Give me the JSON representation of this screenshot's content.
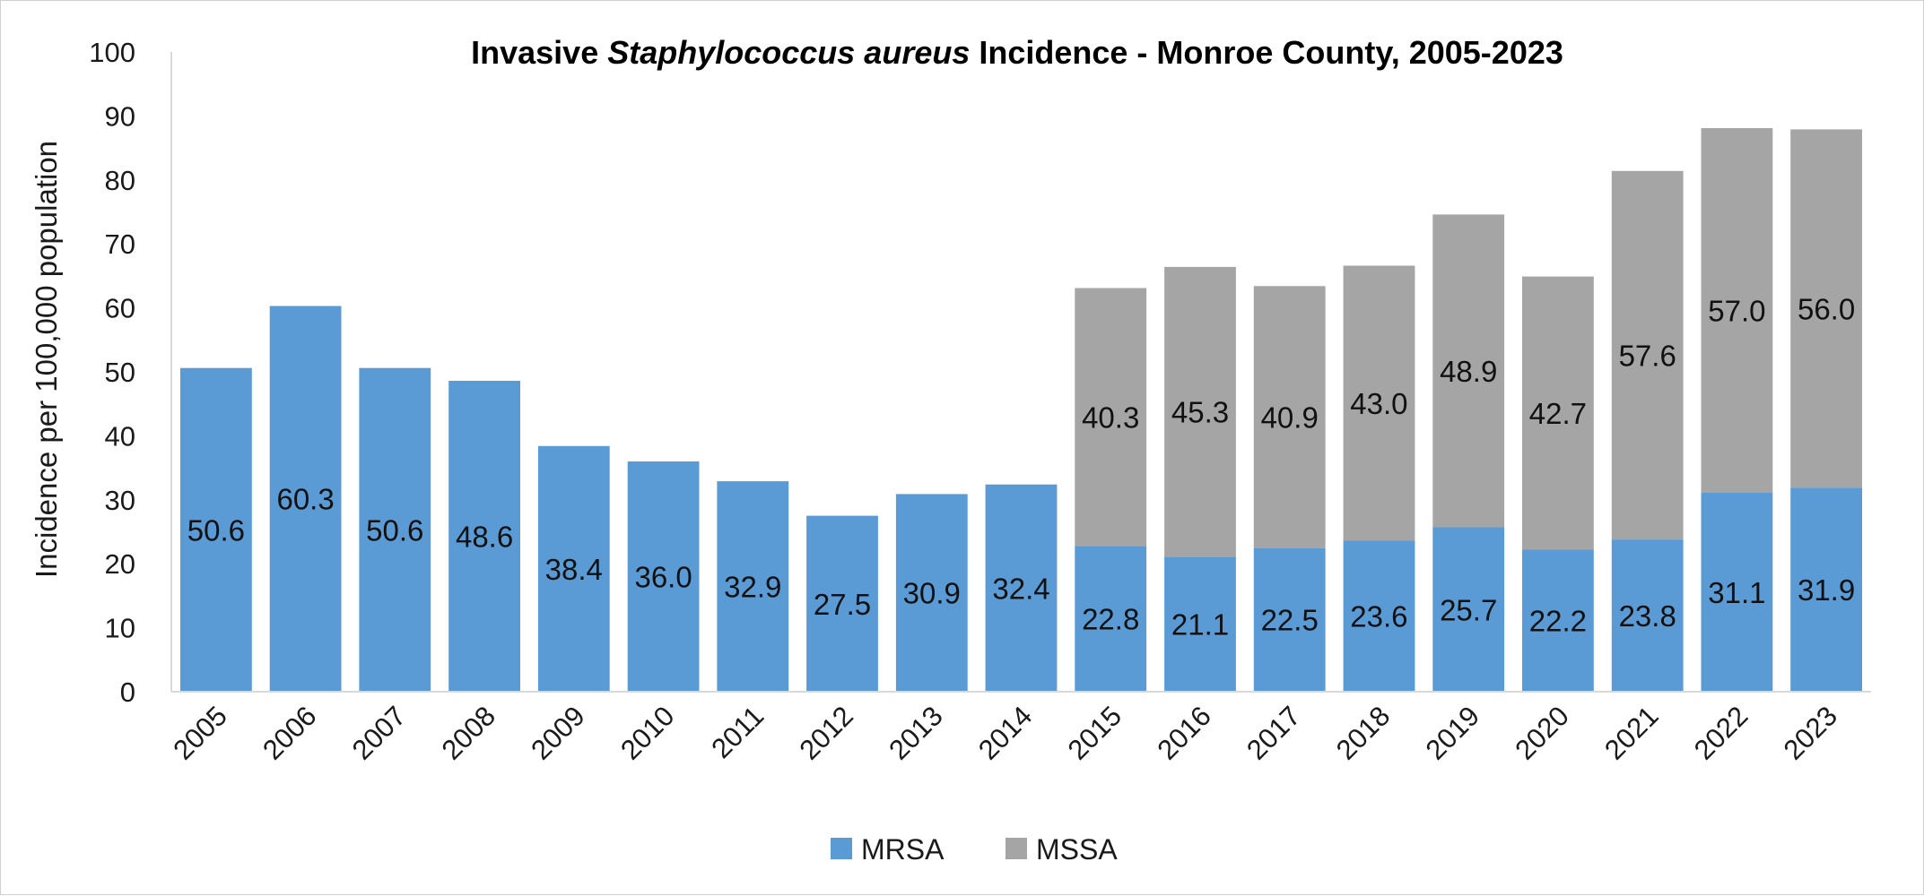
{
  "chart_data": {
    "type": "bar",
    "stacked": true,
    "title": {
      "prefix": "Invasive ",
      "italic": "Staphylococcus aureus",
      "suffix": " Incidence - Monroe County, 2005-2023"
    },
    "xlabel": "",
    "ylabel": "Incidence per 100,000 population",
    "ylim": [
      0,
      100
    ],
    "yticks": [
      0,
      10,
      20,
      30,
      40,
      50,
      60,
      70,
      80,
      90,
      100
    ],
    "grid": false,
    "legend_position": "bottom",
    "categories": [
      "2005",
      "2006",
      "2007",
      "2008",
      "2009",
      "2010",
      "2011",
      "2012",
      "2013",
      "2014",
      "2015",
      "2016",
      "2017",
      "2018",
      "2019",
      "2020",
      "2021",
      "2022",
      "2023"
    ],
    "series": [
      {
        "name": "MRSA",
        "color": "#5b9bd5",
        "values": [
          50.6,
          60.3,
          50.6,
          48.6,
          38.4,
          36.0,
          32.9,
          27.5,
          30.9,
          32.4,
          22.8,
          21.1,
          22.5,
          23.6,
          25.7,
          22.2,
          23.8,
          31.1,
          31.9
        ],
        "labels": [
          "50.6",
          "60.3",
          "50.6",
          "48.6",
          "38.4",
          "36.0",
          "32.9",
          "27.5",
          "30.9",
          "32.4",
          "22.8",
          "21.1",
          "22.5",
          "23.6",
          "25.7",
          "22.2",
          "23.8",
          "31.1",
          "31.9"
        ]
      },
      {
        "name": "MSSA",
        "color": "#a5a5a5",
        "values": [
          null,
          null,
          null,
          null,
          null,
          null,
          null,
          null,
          null,
          null,
          40.3,
          45.3,
          40.9,
          43.0,
          48.9,
          42.7,
          57.6,
          57.0,
          56.0
        ],
        "labels": [
          "",
          "",
          "",
          "",
          "",
          "",
          "",
          "",
          "",
          "",
          "40.3",
          "45.3",
          "40.9",
          "43.0",
          "48.9",
          "42.7",
          "57.6",
          "57.0",
          "56.0"
        ]
      }
    ]
  }
}
